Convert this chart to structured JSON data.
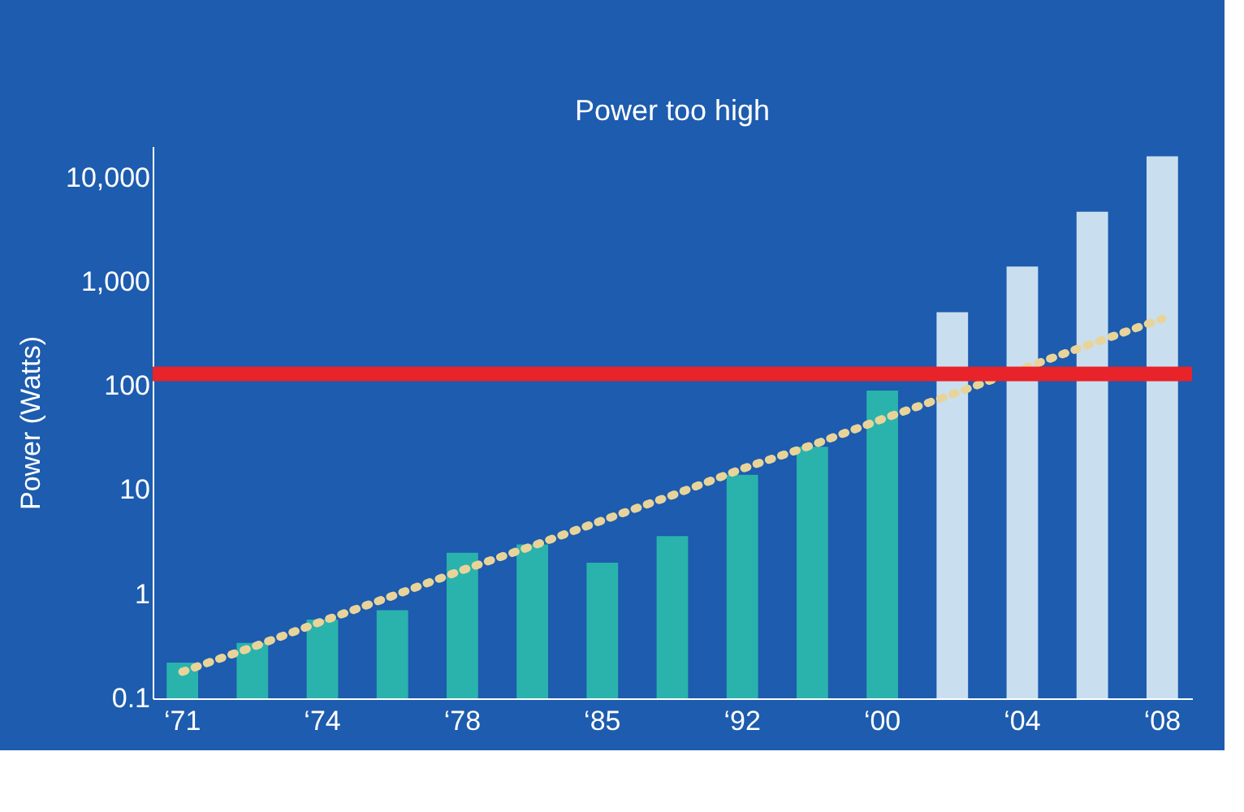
{
  "chart_data": {
    "type": "bar",
    "title": "Power too high",
    "ylabel": "Power (Watts)",
    "categories": [
      "‘71",
      null,
      "‘74",
      null,
      "‘78",
      null,
      "‘85",
      null,
      "‘92",
      null,
      "‘00",
      null,
      "‘04",
      null,
      "‘08"
    ],
    "series": [
      {
        "colors": [
          "#2ab3ac",
          "#2ab3ac",
          "#2ab3ac",
          "#2ab3ac",
          "#2ab3ac",
          "#2ab3ac",
          "#2ab3ac",
          "#2ab3ac",
          "#2ab3ac",
          "#2ab3ac",
          "#2ab3ac",
          "#c9dff0",
          "#c9dff0",
          "#c9dff0",
          "#c9dff0"
        ],
        "values": [
          0.22,
          0.34,
          0.57,
          0.7,
          2.5,
          3,
          2,
          3.6,
          14,
          26,
          90,
          510,
          1400,
          4700,
          16000
        ]
      },
      {
        "type": "line",
        "color": "#e8d49a",
        "line_style": "dotted",
        "marker": "none",
        "values": [
          0.18,
          0.31,
          0.55,
          0.96,
          1.7,
          2.9,
          5.1,
          8.9,
          16,
          27,
          48,
          83,
          146,
          255,
          440
        ]
      }
    ],
    "ylim": [
      0.1,
      20000
    ],
    "yticks": [
      0.1,
      1,
      10,
      100,
      {
        "value": 1000,
        "label": "1,000"
      },
      {
        "value": 10000,
        "label": "10,000"
      }
    ],
    "log": "y",
    "grid": false,
    "ref_lines": [
      {
        "axis": "y",
        "value": 130,
        "color": "#e8232a"
      }
    ]
  }
}
